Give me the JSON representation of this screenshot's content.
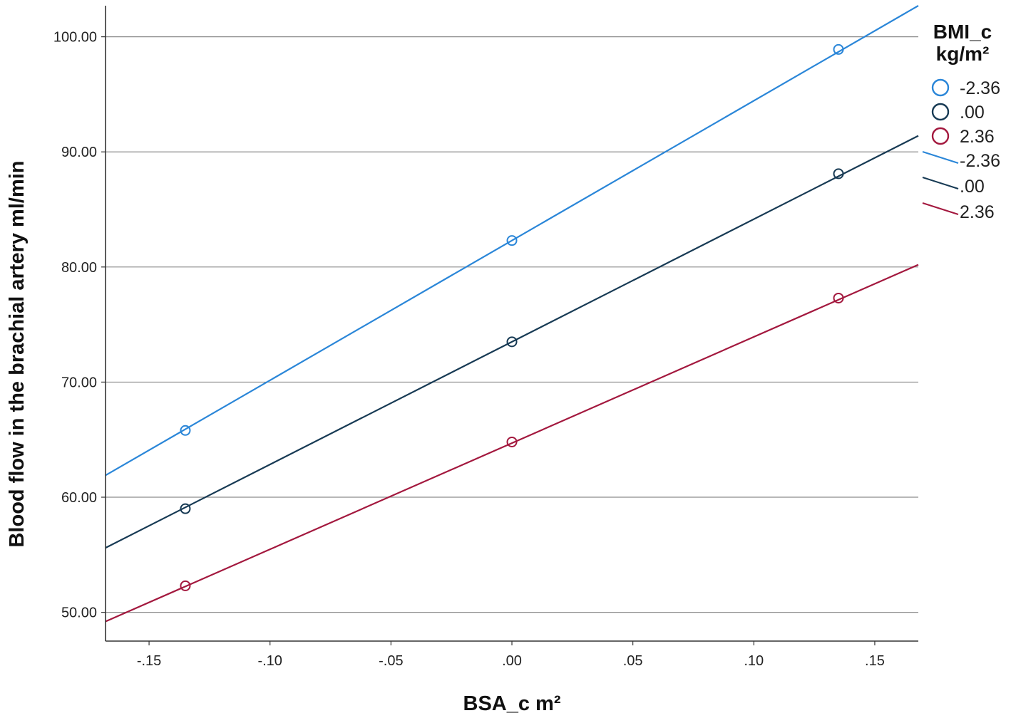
{
  "chart_data": {
    "type": "line",
    "xlabel": "BSA_c m²",
    "ylabel": "Blood flow in the brachial artery ml/min",
    "xlim": [
      -0.168,
      0.168
    ],
    "ylim": [
      47.5,
      102.7
    ],
    "x_ticks": [
      -0.15,
      -0.1,
      -0.05,
      0.0,
      0.05,
      0.1,
      0.15
    ],
    "x_tick_labels": [
      "-.15",
      "-.10",
      "-.05",
      ".00",
      ".05",
      ".10",
      ".15"
    ],
    "y_ticks": [
      50,
      60,
      70,
      80,
      90,
      100
    ],
    "y_tick_labels": [
      "50.00",
      "60.00",
      "70.00",
      "80.00",
      "90.00",
      "100.00"
    ],
    "grid": "horizontal",
    "legend": {
      "position": "right",
      "title_line1": "BMI_c",
      "title_line2": "kg/m²"
    },
    "series": [
      {
        "name": "-2.36",
        "color": "#2a86d8",
        "points": {
          "x": [
            -0.135,
            0.0,
            0.135
          ],
          "y": [
            65.8,
            82.3,
            98.9
          ]
        },
        "fit": {
          "x": [
            -0.168,
            0.168
          ],
          "y": [
            61.9,
            102.7
          ]
        }
      },
      {
        "name": ".00",
        "color": "#173a54",
        "points": {
          "x": [
            -0.135,
            0.0,
            0.135
          ],
          "y": [
            59.0,
            73.5,
            88.1
          ]
        },
        "fit": {
          "x": [
            -0.168,
            0.168
          ],
          "y": [
            55.6,
            91.4
          ]
        }
      },
      {
        "name": "2.36",
        "color": "#a3183e",
        "points": {
          "x": [
            -0.135,
            0.0,
            0.135
          ],
          "y": [
            52.3,
            64.8,
            77.3
          ]
        },
        "fit": {
          "x": [
            -0.168,
            0.168
          ],
          "y": [
            49.2,
            80.2
          ]
        }
      }
    ]
  }
}
